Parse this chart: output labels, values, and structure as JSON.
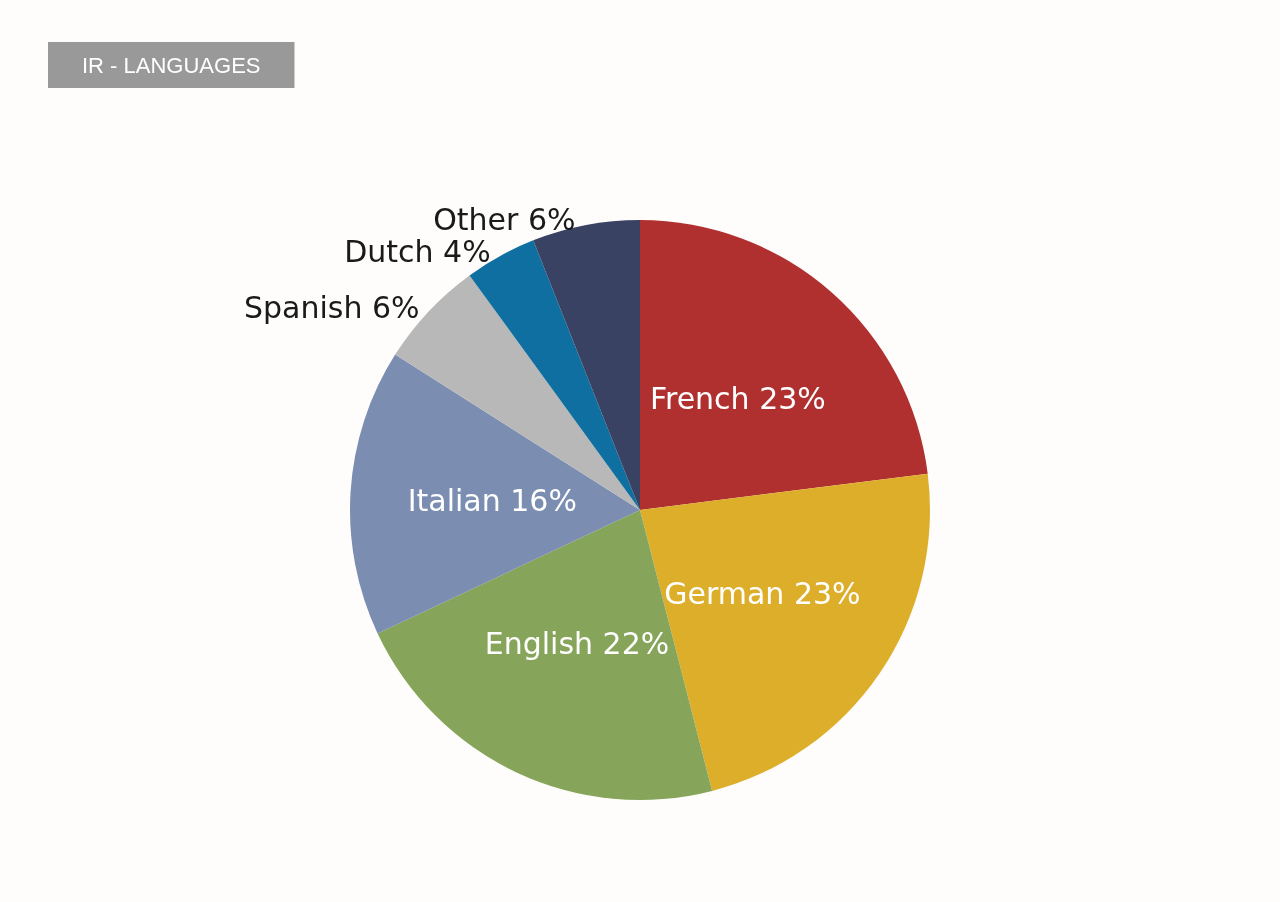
{
  "chart_data": {
    "type": "pie",
    "title": "IR - LANGUAGES",
    "categories": [
      "French",
      "German",
      "English",
      "Italian",
      "Spanish",
      "Dutch",
      "Other"
    ],
    "values": [
      23,
      23,
      22,
      16,
      6,
      4,
      6
    ],
    "value_labels": [
      "23%",
      "23%",
      "22%",
      "16%",
      "6%",
      "4%",
      "6%"
    ],
    "colors": [
      "#b03030",
      "#dcae2a",
      "#86a55a",
      "#7b8db0",
      "#b8b8b8",
      "#0f6fa0",
      "#3a4263"
    ]
  }
}
